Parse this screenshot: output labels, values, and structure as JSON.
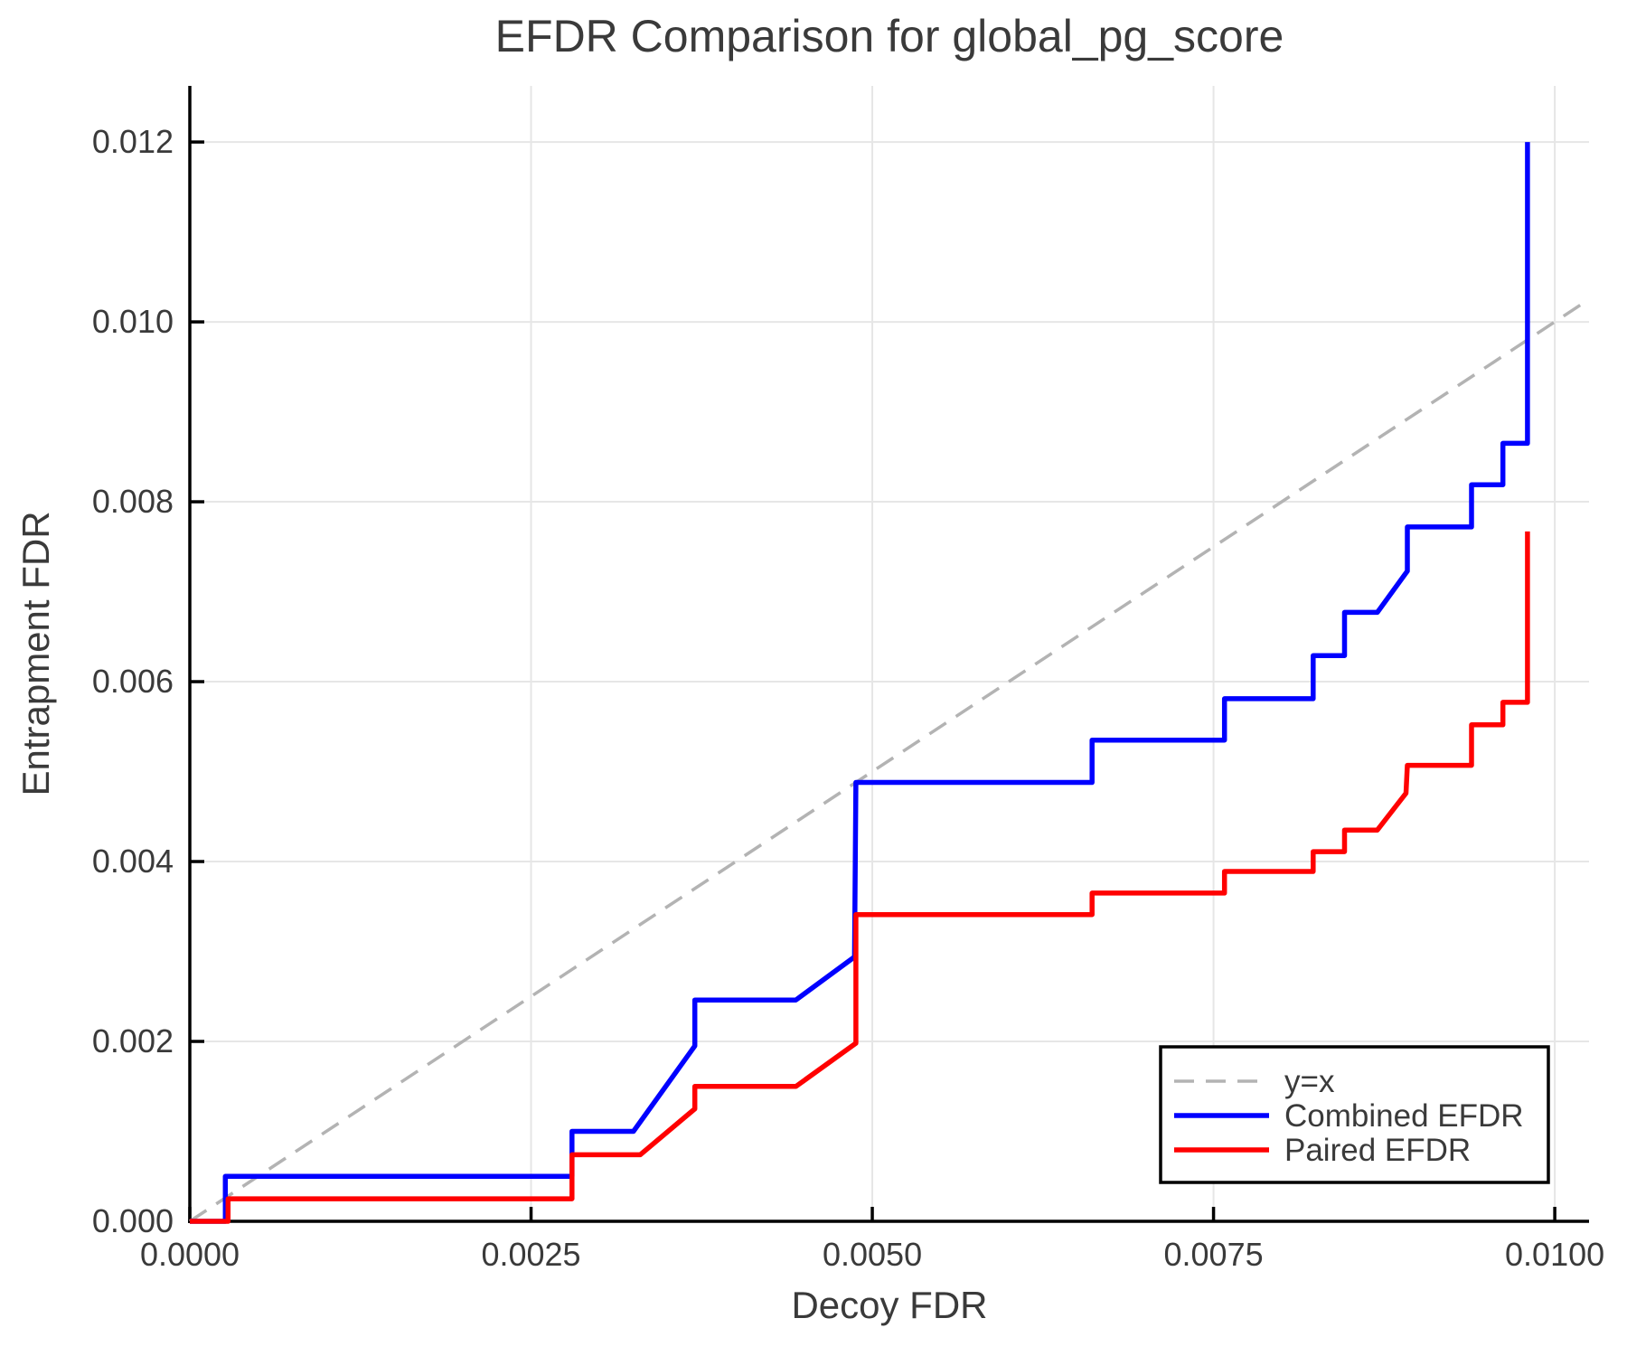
{
  "page": {
    "background": "#ffffff"
  },
  "colors": {
    "combined_efdr": "#0000ff",
    "paired_efdr": "#ff0000",
    "reference_line": "#b3b3b3",
    "grid": "#e6e6e6",
    "spine": "#000000",
    "text": "#3a3a3a",
    "legend_border": "#000000",
    "legend_background": "#ffffff"
  },
  "chart_data": {
    "type": "line",
    "title": "EFDR Comparison for global_pg_score",
    "xlabel": "Decoy FDR",
    "ylabel": "Entrapment FDR",
    "xlim": [
      0,
      0.010251
    ],
    "ylim": [
      0,
      0.012624
    ],
    "grid": true,
    "x_ticks": [
      {
        "v": 0.0,
        "label": "0.0000"
      },
      {
        "v": 0.0025,
        "label": "0.0025"
      },
      {
        "v": 0.005,
        "label": "0.0050"
      },
      {
        "v": 0.0075,
        "label": "0.0075"
      },
      {
        "v": 0.01,
        "label": "0.0100"
      }
    ],
    "y_ticks": [
      {
        "v": 0.0,
        "label": "0.000"
      },
      {
        "v": 0.002,
        "label": "0.002"
      },
      {
        "v": 0.004,
        "label": "0.004"
      },
      {
        "v": 0.006,
        "label": "0.006"
      },
      {
        "v": 0.008,
        "label": "0.008"
      },
      {
        "v": 0.01,
        "label": "0.010"
      },
      {
        "v": 0.012,
        "label": "0.012"
      }
    ],
    "reference_line": {
      "label": "y=x",
      "style": "dashed",
      "color": "#b3b3b3",
      "from": [
        0,
        0
      ],
      "to": [
        0.010251,
        0.010251
      ]
    },
    "legend": {
      "position": "lower right",
      "entries": [
        {
          "label": "y=x",
          "color": "#b3b3b3",
          "dash": "22 13",
          "width": 3.5
        },
        {
          "label": "Combined EFDR",
          "color": "#0000ff",
          "dash": null,
          "width": 5.5
        },
        {
          "label": "Paired EFDR",
          "color": "#ff0000",
          "dash": null,
          "width": 5.5
        }
      ]
    },
    "series": [
      {
        "name": "Combined EFDR",
        "color": "#0000ff",
        "points": [
          [
            0.0,
            0.0
          ],
          [
            0.00026,
            0.0
          ],
          [
            0.00026,
            0.0005
          ],
          [
            0.0028,
            0.0005
          ],
          [
            0.0028,
            0.001
          ],
          [
            0.00325,
            0.001
          ],
          [
            0.0037,
            0.00195
          ],
          [
            0.0037,
            0.00246
          ],
          [
            0.00444,
            0.00246
          ],
          [
            0.00487,
            0.00294
          ],
          [
            0.00488,
            0.00488
          ],
          [
            0.00661,
            0.00488
          ],
          [
            0.00661,
            0.00535
          ],
          [
            0.00758,
            0.00535
          ],
          [
            0.00758,
            0.00581
          ],
          [
            0.00823,
            0.00581
          ],
          [
            0.00823,
            0.00629
          ],
          [
            0.00846,
            0.00629
          ],
          [
            0.00846,
            0.00677
          ],
          [
            0.0087,
            0.00677
          ],
          [
            0.00892,
            0.00723
          ],
          [
            0.00892,
            0.00772
          ],
          [
            0.00939,
            0.00772
          ],
          [
            0.00939,
            0.00819
          ],
          [
            0.00962,
            0.00819
          ],
          [
            0.00962,
            0.00865
          ],
          [
            0.0098,
            0.00865
          ],
          [
            0.0098,
            0.012
          ]
        ]
      },
      {
        "name": "Paired EFDR",
        "color": "#ff0000",
        "points": [
          [
            0.0,
            0.0
          ],
          [
            0.00028,
            0.0
          ],
          [
            0.00028,
            0.00025
          ],
          [
            0.0028,
            0.00025
          ],
          [
            0.0028,
            0.00074
          ],
          [
            0.0033,
            0.00074
          ],
          [
            0.0037,
            0.00125
          ],
          [
            0.0037,
            0.0015
          ],
          [
            0.00444,
            0.0015
          ],
          [
            0.00488,
            0.00198
          ],
          [
            0.00488,
            0.00341
          ],
          [
            0.00661,
            0.00341
          ],
          [
            0.00661,
            0.00365
          ],
          [
            0.00758,
            0.00365
          ],
          [
            0.00758,
            0.00389
          ],
          [
            0.00823,
            0.00389
          ],
          [
            0.00823,
            0.00411
          ],
          [
            0.00846,
            0.00411
          ],
          [
            0.00846,
            0.00435
          ],
          [
            0.0087,
            0.00435
          ],
          [
            0.00891,
            0.00476
          ],
          [
            0.00892,
            0.00507
          ],
          [
            0.00939,
            0.00507
          ],
          [
            0.00939,
            0.00552
          ],
          [
            0.00962,
            0.00552
          ],
          [
            0.00962,
            0.00577
          ],
          [
            0.0098,
            0.00577
          ],
          [
            0.0098,
            0.00767
          ]
        ]
      }
    ]
  }
}
